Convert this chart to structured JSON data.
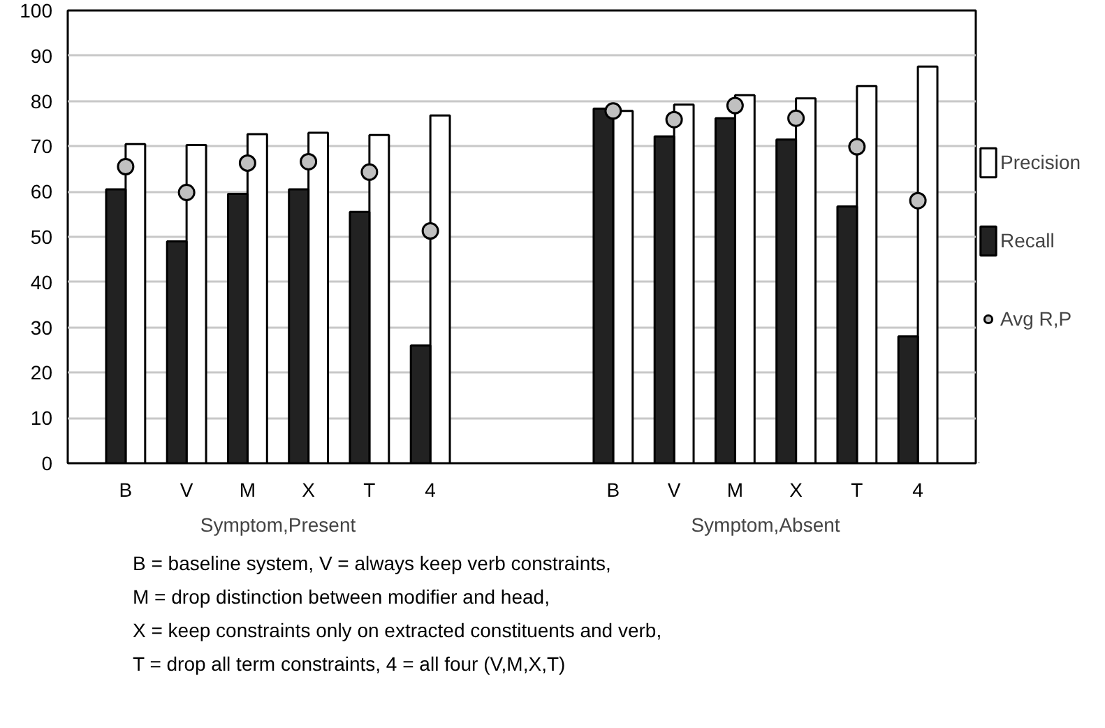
{
  "chart_data": {
    "type": "bar",
    "categories": [
      "B",
      "V",
      "M",
      "X",
      "T",
      "4",
      null,
      null,
      "B",
      "V",
      "M",
      "X",
      "T",
      "4"
    ],
    "series": [
      {
        "name": "Precision",
        "color": "#ffffff",
        "values": [
          70.5,
          70.3,
          72.7,
          73.0,
          72.5,
          76.8,
          null,
          null,
          77.8,
          79.2,
          81.3,
          80.6,
          83.3,
          87.6
        ]
      },
      {
        "name": "Recall",
        "color": "#222222",
        "values": [
          60.5,
          49.0,
          59.5,
          60.5,
          55.5,
          26.0,
          null,
          null,
          78.3,
          72.2,
          76.2,
          71.5,
          56.7,
          28.0
        ]
      },
      {
        "name": "Avg R,P",
        "type": "scatter",
        "color": "#c0c0c0",
        "values": [
          65.5,
          59.8,
          66.3,
          66.6,
          64.3,
          51.3,
          null,
          null,
          77.8,
          75.9,
          79.0,
          76.2,
          69.9,
          58.0
        ]
      }
    ],
    "marker": "circle",
    "ylim": [
      0,
      100
    ],
    "yticks": [
      0,
      10,
      20,
      30,
      40,
      50,
      60,
      70,
      80,
      90,
      100
    ],
    "grid": "y",
    "legend": "right",
    "annotations": [
      "Symptom,Present",
      "Symptom,Absent",
      "B = baseline system, V = always keep verb constraints,",
      "M = drop distinction between modifier and head,",
      "X = keep constraints only on extracted constituents and verb,",
      "T = drop all term constraints, 4 = all four (V,M,X,T)"
    ]
  }
}
